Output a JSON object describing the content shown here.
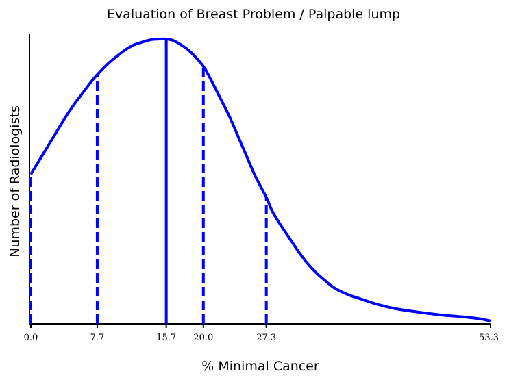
{
  "chart_data": {
    "type": "line",
    "title": "Evaluation of Breast Problem / Palpable lump",
    "xlabel": "% Minimal Cancer",
    "ylabel": "Number of Radiologists",
    "tick_labels": [
      "0.0",
      "7.7",
      "15.7",
      "20.0",
      "27.3",
      "53.3"
    ],
    "xlim": [
      0,
      53.3
    ],
    "ylim": [
      0,
      1
    ],
    "series": [
      {
        "color": "#0000ff",
        "x": [
          0,
          1,
          2,
          3,
          4,
          5,
          6,
          7,
          7.7,
          9,
          10,
          11,
          12,
          13,
          14,
          15,
          15.7,
          16.5,
          17.5,
          18.5,
          20,
          21,
          22,
          23,
          24,
          25,
          26,
          27.3,
          28,
          29,
          30,
          31,
          32,
          33,
          34,
          35,
          36,
          37,
          38,
          39,
          40,
          42,
          44,
          46,
          48,
          50,
          52,
          53.3
        ],
        "values": [
          0.525,
          0.575,
          0.625,
          0.675,
          0.725,
          0.77,
          0.81,
          0.85,
          0.875,
          0.915,
          0.94,
          0.963,
          0.98,
          0.99,
          0.998,
          1.0,
          1.0,
          0.995,
          0.978,
          0.955,
          0.904,
          0.85,
          0.79,
          0.73,
          0.66,
          0.59,
          0.52,
          0.444,
          0.395,
          0.345,
          0.3,
          0.255,
          0.215,
          0.182,
          0.155,
          0.13,
          0.113,
          0.1,
          0.09,
          0.08,
          0.07,
          0.055,
          0.045,
          0.037,
          0.03,
          0.025,
          0.018,
          0.01
        ]
      }
    ],
    "markers": [
      {
        "x": 0.0,
        "style": "dashed"
      },
      {
        "x": 7.7,
        "style": "dashed"
      },
      {
        "x": 15.7,
        "style": "solid"
      },
      {
        "x": 20.0,
        "style": "dashed"
      },
      {
        "x": 27.3,
        "style": "dashed"
      }
    ],
    "grid": false,
    "colors": {
      "line": "#0000ff",
      "axis": "#000000"
    }
  }
}
